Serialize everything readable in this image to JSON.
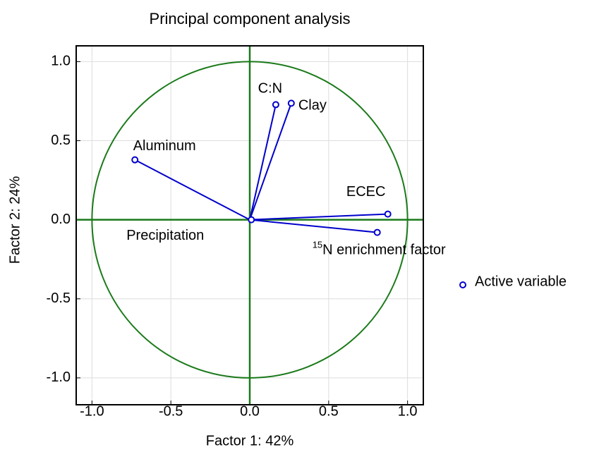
{
  "chart_data": {
    "type": "scatter",
    "title": "Principal component analysis",
    "x_label": "Factor 1: 42%",
    "y_label": "Factor 2: 24%",
    "xlim": [
      -1.1,
      1.1
    ],
    "ylim": [
      -1.17,
      1.1
    ],
    "xticks": [
      {
        "value": -1,
        "label": "-1.0"
      },
      -0.5,
      {
        "value": 0,
        "label": "0.0"
      },
      0.5,
      {
        "value": 1,
        "label": "1.0"
      }
    ],
    "yticks": [
      {
        "value": -1,
        "label": "-1.0"
      },
      -0.5,
      {
        "value": 0,
        "label": "0.0"
      },
      0.5,
      {
        "value": 1,
        "label": "1.0"
      }
    ],
    "grid": true,
    "circle_color": "#1a7a1a",
    "series": [
      {
        "name": "Active variable",
        "color": "#0000cc",
        "labels": [
          "C:N",
          "Clay",
          "Aluminum",
          "ECEC",
          {
            "sup": "15",
            "text": "N enrichment factor"
          },
          "Precipitation"
        ],
        "x": [
          0.165,
          0.263,
          -0.728,
          0.875,
          0.808,
          0.01
        ],
        "values": [
          0.728,
          0.737,
          0.379,
          0.036,
          -0.08,
          0.0
        ]
      }
    ]
  }
}
